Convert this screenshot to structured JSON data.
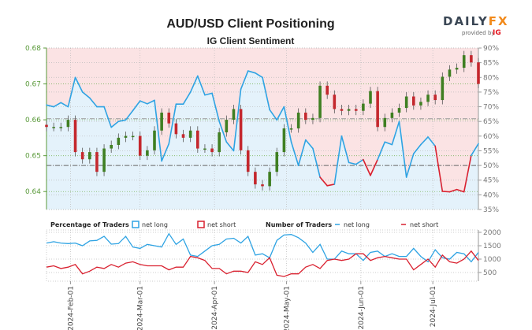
{
  "header": {
    "title": "AUD/USD Client Positioning",
    "subtitle": "IG Client Sentiment"
  },
  "logo": {
    "brand": "DAILYFX",
    "provided_by": "provided by",
    "ig": "IG"
  },
  "colors": {
    "net_long": "#2ea3e3",
    "net_short": "#d9202f",
    "bull_candle": "#3f7f22",
    "bear_candle": "#c4272d",
    "price_axis": "#5a9a3a",
    "long_fill": "#e4f2fb",
    "short_fill": "#fbe3e4"
  },
  "chart_data": [
    {
      "type": "candlestick+line",
      "title": "IG Client Sentiment",
      "xlim": [
        "2024-01-22",
        "2024-07-20"
      ],
      "x_ticks": [
        "2024-Feb-01",
        "2024-Mar-01",
        "2024-Apr-01",
        "2024-May-01",
        "2024-Jun-01",
        "2024-Jul-01"
      ],
      "x_tick_dates": [
        "2024-02-01",
        "2024-03-01",
        "2024-04-01",
        "2024-05-01",
        "2024-06-01",
        "2024-07-01"
      ],
      "left_axis": {
        "ticks": [
          "0.68",
          "0.67",
          "0.66",
          "0.65",
          "0.64"
        ],
        "tick_values": [
          0.68,
          0.67,
          0.66,
          0.65,
          0.64
        ],
        "ylim": [
          0.635,
          0.68
        ]
      },
      "right_axis": {
        "ticks": [
          "90%",
          "85%",
          "80%",
          "75%",
          "70%",
          "65%",
          "60%",
          "55%",
          "50%",
          "45%",
          "40%",
          "35%"
        ],
        "tick_values": [
          90,
          85,
          80,
          75,
          70,
          65,
          60,
          55,
          50,
          45,
          40,
          35
        ],
        "ylim": [
          35,
          90
        ]
      },
      "reference_lines": {
        "percent": 50,
        "price": 0.6603
      },
      "dates": [
        "2024-01-22",
        "2024-01-25",
        "2024-01-28",
        "2024-01-31",
        "2024-02-03",
        "2024-02-06",
        "2024-02-09",
        "2024-02-12",
        "2024-02-15",
        "2024-02-18",
        "2024-02-21",
        "2024-02-24",
        "2024-02-27",
        "2024-03-01",
        "2024-03-04",
        "2024-03-07",
        "2024-03-10",
        "2024-03-13",
        "2024-03-16",
        "2024-03-19",
        "2024-03-22",
        "2024-03-25",
        "2024-03-28",
        "2024-03-31",
        "2024-04-03",
        "2024-04-06",
        "2024-04-09",
        "2024-04-12",
        "2024-04-15",
        "2024-04-18",
        "2024-04-21",
        "2024-04-24",
        "2024-04-27",
        "2024-04-30",
        "2024-05-03",
        "2024-05-06",
        "2024-05-09",
        "2024-05-12",
        "2024-05-15",
        "2024-05-18",
        "2024-05-21",
        "2024-05-24",
        "2024-05-27",
        "2024-05-30",
        "2024-06-02",
        "2024-06-05",
        "2024-06-08",
        "2024-06-11",
        "2024-06-14",
        "2024-06-17",
        "2024-06-20",
        "2024-06-23",
        "2024-06-26",
        "2024-06-29",
        "2024-07-02",
        "2024-07-05",
        "2024-07-08",
        "2024-07-11",
        "2024-07-14",
        "2024-07-17",
        "2024-07-20"
      ],
      "price_close": [
        0.658,
        0.658,
        0.658,
        0.66,
        0.651,
        0.649,
        0.651,
        0.6455,
        0.652,
        0.653,
        0.655,
        0.6555,
        0.6555,
        0.65,
        0.6515,
        0.657,
        0.662,
        0.659,
        0.656,
        0.655,
        0.657,
        0.652,
        0.652,
        0.651,
        0.6565,
        0.66,
        0.663,
        0.6515,
        0.6455,
        0.642,
        0.6415,
        0.6455,
        0.651,
        0.6576,
        0.6576,
        0.662,
        0.66,
        0.6605,
        0.6695,
        0.667,
        0.663,
        0.6625,
        0.663,
        0.6625,
        0.6645,
        0.668,
        0.658,
        0.6605,
        0.662,
        0.6633,
        0.6665,
        0.664,
        0.665,
        0.667,
        0.6655,
        0.672,
        0.674,
        0.6745,
        0.678,
        0.676,
        0.67
      ],
      "net_long_percent": [
        70.6,
        70,
        71.4,
        70,
        80,
        75,
        73,
        70,
        70,
        63,
        65,
        65.5,
        68.7,
        72,
        71,
        72.2,
        51.5,
        57.4,
        70.9,
        70.9,
        75,
        80.5,
        74,
        74.6,
        65,
        58,
        55,
        76,
        82.2,
        81.5,
        80,
        69,
        65.5,
        70,
        58,
        50,
        58.7,
        55.8,
        46,
        43.1,
        43.6,
        60,
        51,
        50.4,
        52,
        46.6,
        52,
        58,
        57.1,
        65,
        46,
        54,
        57.1,
        59.7,
        56.6,
        41.2,
        41,
        41.8,
        41,
        53.4,
        57.4
      ]
    },
    {
      "type": "line",
      "legend": {
        "percentage_title": "Percentage of Traders",
        "pct_long": "net long",
        "pct_short": "net short",
        "number_title": "Number of Traders",
        "num_long": "net long",
        "num_short": "net short"
      },
      "right_axis": {
        "ticks": [
          "2000",
          "1500",
          "1000",
          "500"
        ],
        "tick_values": [
          2000,
          1500,
          1000,
          500
        ]
      },
      "series": [
        {
          "name": "net long",
          "values": [
            1600,
            1650,
            1600,
            1580,
            1600,
            1500,
            1680,
            1700,
            1850,
            1560,
            1580,
            1850,
            1450,
            1400,
            1550,
            1500,
            1450,
            1950,
            1550,
            1750,
            1150,
            1100,
            1300,
            1500,
            1550,
            1750,
            1780,
            1600,
            1850,
            1150,
            1200,
            1050,
            1700,
            1900,
            1920,
            1800,
            1600,
            1250,
            1550,
            1000,
            1000,
            1300,
            1200,
            1200,
            950,
            1250,
            1300,
            1100,
            1200,
            1100,
            1100,
            1400,
            1100,
            900,
            1350,
            1050,
            1000,
            1250,
            1200,
            900,
            1250
          ]
        },
        {
          "name": "net short",
          "values": [
            700,
            750,
            650,
            700,
            800,
            450,
            550,
            700,
            650,
            800,
            700,
            850,
            900,
            800,
            750,
            750,
            750,
            600,
            700,
            700,
            1100,
            1050,
            950,
            650,
            650,
            450,
            550,
            550,
            500,
            900,
            800,
            1050,
            400,
            350,
            450,
            450,
            700,
            800,
            650,
            950,
            1000,
            950,
            1000,
            1200,
            1200,
            950,
            1050,
            1100,
            1050,
            1000,
            1000,
            600,
            800,
            1000,
            700,
            1150,
            900,
            850,
            1000,
            1300,
            950
          ]
        }
      ]
    }
  ]
}
